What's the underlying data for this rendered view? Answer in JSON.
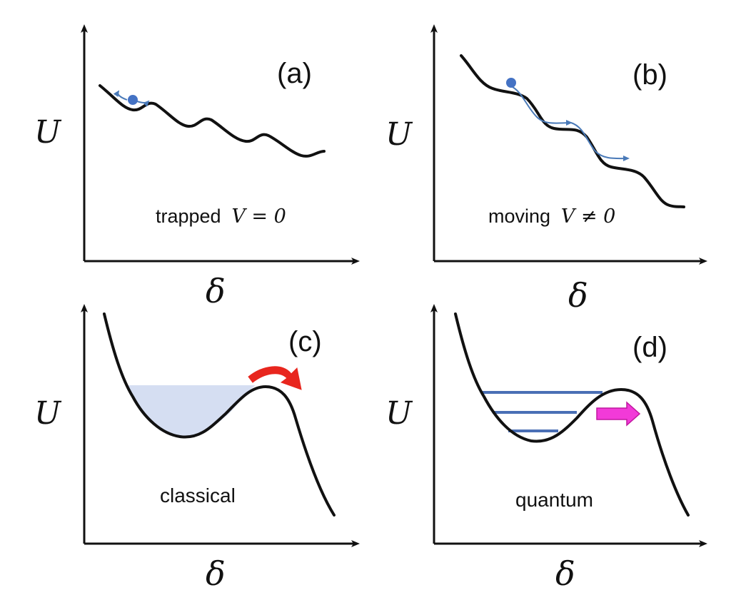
{
  "colors": {
    "axis": "#111111",
    "curve": "#111111",
    "particle": "#4472c4",
    "trajectory": "#4a7ab8",
    "well_fill": "#d5def2",
    "levels": "#4a6fb5",
    "escape_arrow_red": "#e8261e",
    "tunnel_arrow_magenta": "#f23ad8"
  },
  "panels": [
    {
      "id": "a",
      "tag": "(a)",
      "y_symbol": "U",
      "x_symbol": "δ",
      "caption_word": "trapped",
      "caption_math": "V = 0"
    },
    {
      "id": "b",
      "tag": "(b)",
      "y_symbol": "U",
      "x_symbol": "δ",
      "caption_word": "moving",
      "caption_math": "V ≠ 0"
    },
    {
      "id": "c",
      "tag": "(c)",
      "y_symbol": "U",
      "x_symbol": "δ",
      "caption_word": "classical"
    },
    {
      "id": "d",
      "tag": "(d)",
      "y_symbol": "U",
      "x_symbol": "δ",
      "caption_word": "quantum"
    }
  ]
}
